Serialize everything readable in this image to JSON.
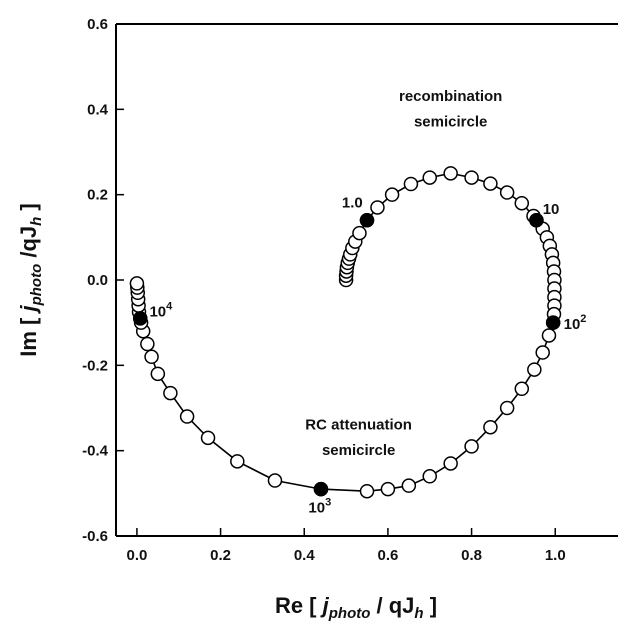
{
  "chart_data": {
    "type": "scatter",
    "xlabel": {
      "pre": "Re [ ",
      "sub1_base": "j",
      "sub1": "photo",
      "mid": " / qJ",
      "sub2": "h",
      "post": " ]"
    },
    "ylabel": {
      "pre": "Im [ ",
      "sub1_base": "j",
      "sub1": "photo",
      "mid": " /qJ",
      "sub2": "h",
      "post": " ]"
    },
    "xlim": [
      -0.05,
      1.15
    ],
    "ylim": [
      -0.6,
      0.6
    ],
    "xticks": [
      0.0,
      0.2,
      0.4,
      0.6,
      0.8,
      1.0
    ],
    "xtick_labels": [
      "0.0",
      "0.2",
      "0.4",
      "0.6",
      "0.8",
      "1.0"
    ],
    "yticks": [
      -0.6,
      -0.4,
      -0.2,
      0.0,
      0.2,
      0.4,
      0.6
    ],
    "ytick_labels": [
      "-0.6",
      "-0.4",
      "-0.2",
      "0.0",
      "0.2",
      "0.4",
      "0.6"
    ],
    "grid": false,
    "series": [
      {
        "points": [
          [
            0.5,
            0.0
          ],
          [
            0.5,
            0.01
          ],
          [
            0.501,
            0.02
          ],
          [
            0.502,
            0.03
          ],
          [
            0.504,
            0.04
          ],
          [
            0.507,
            0.05
          ],
          [
            0.51,
            0.06
          ],
          [
            0.515,
            0.075
          ],
          [
            0.522,
            0.09
          ],
          [
            0.532,
            0.11
          ],
          [
            0.55,
            0.14
          ],
          [
            0.575,
            0.17
          ],
          [
            0.61,
            0.2
          ],
          [
            0.655,
            0.225
          ],
          [
            0.7,
            0.24
          ],
          [
            0.75,
            0.25
          ],
          [
            0.8,
            0.24
          ],
          [
            0.845,
            0.226
          ],
          [
            0.885,
            0.205
          ],
          [
            0.92,
            0.18
          ],
          [
            0.948,
            0.15
          ],
          [
            0.955,
            0.14
          ],
          [
            0.97,
            0.12
          ],
          [
            0.98,
            0.1
          ],
          [
            0.987,
            0.08
          ],
          [
            0.992,
            0.06
          ],
          [
            0.995,
            0.04
          ],
          [
            0.997,
            0.02
          ],
          [
            0.998,
            0.0
          ],
          [
            0.998,
            -0.02
          ],
          [
            0.998,
            -0.04
          ],
          [
            0.998,
            -0.06
          ],
          [
            0.997,
            -0.08
          ],
          [
            0.995,
            -0.1
          ],
          [
            0.985,
            -0.13
          ],
          [
            0.97,
            -0.17
          ],
          [
            0.95,
            -0.21
          ],
          [
            0.92,
            -0.255
          ],
          [
            0.885,
            -0.3
          ],
          [
            0.845,
            -0.345
          ],
          [
            0.8,
            -0.39
          ],
          [
            0.75,
            -0.43
          ],
          [
            0.7,
            -0.46
          ],
          [
            0.65,
            -0.482
          ],
          [
            0.6,
            -0.49
          ],
          [
            0.55,
            -0.495
          ],
          [
            0.44,
            -0.49
          ],
          [
            0.33,
            -0.47
          ],
          [
            0.24,
            -0.425
          ],
          [
            0.17,
            -0.37
          ],
          [
            0.12,
            -0.32
          ],
          [
            0.08,
            -0.265
          ],
          [
            0.05,
            -0.22
          ],
          [
            0.035,
            -0.18
          ],
          [
            0.025,
            -0.15
          ],
          [
            0.015,
            -0.12
          ],
          [
            0.01,
            -0.1
          ],
          [
            0.008,
            -0.09
          ],
          [
            0.005,
            -0.075
          ],
          [
            0.004,
            -0.06
          ],
          [
            0.003,
            -0.045
          ],
          [
            0.002,
            -0.03
          ],
          [
            0.001,
            -0.018
          ],
          [
            0.0,
            -0.008
          ]
        ],
        "filled_points": [
          [
            0.55,
            0.14
          ],
          [
            0.955,
            0.14
          ],
          [
            0.995,
            -0.1
          ],
          [
            0.44,
            -0.49
          ],
          [
            0.008,
            -0.09
          ]
        ]
      }
    ],
    "annotations": [
      {
        "text": "recombination",
        "x": 0.75,
        "y": 0.42
      },
      {
        "text": "semicircle",
        "x": 0.75,
        "y": 0.36
      },
      {
        "text": "RC attenuation",
        "x": 0.53,
        "y": -0.35
      },
      {
        "text": "semicircle",
        "x": 0.53,
        "y": -0.41
      }
    ],
    "frequency_labels": [
      {
        "base": "1.0",
        "exp": "",
        "x": 0.49,
        "y": 0.17
      },
      {
        "base": "10",
        "exp": "",
        "x": 0.97,
        "y": 0.155
      },
      {
        "base": "10",
        "exp": "2",
        "x": 1.02,
        "y": -0.115
      },
      {
        "base": "10",
        "exp": "3",
        "x": 0.41,
        "y": -0.545
      },
      {
        "base": "10",
        "exp": "4",
        "x": 0.03,
        "y": -0.085
      }
    ]
  }
}
